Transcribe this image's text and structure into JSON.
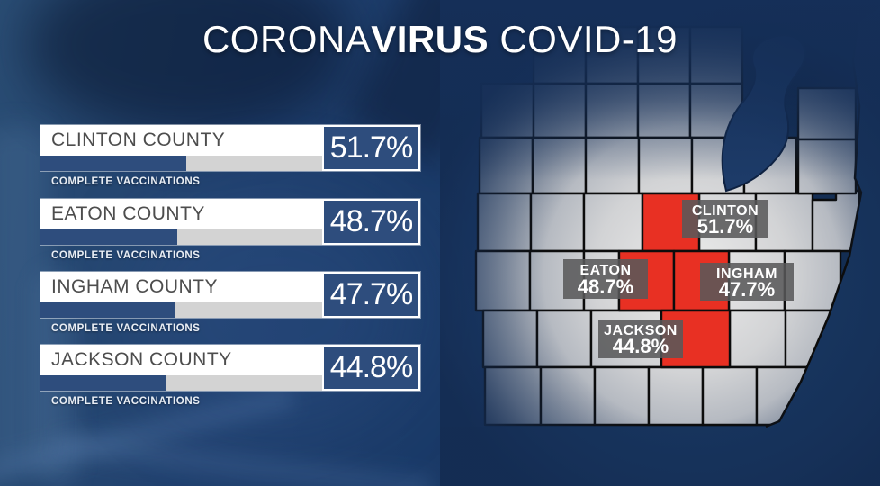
{
  "title": {
    "part1": "CORONA",
    "part2": "VIRUS",
    "part3": " COVID-19"
  },
  "panel": {
    "counties": [
      {
        "name": "CLINTON COUNTY",
        "value": 51.7,
        "value_label": "51.7%",
        "caption": "COMPLETE VACCINATIONS"
      },
      {
        "name": "EATON COUNTY",
        "value": 48.7,
        "value_label": "48.7%",
        "caption": "COMPLETE VACCINATIONS"
      },
      {
        "name": "INGHAM COUNTY",
        "value": 47.7,
        "value_label": "47.7%",
        "caption": "COMPLETE VACCINATIONS"
      },
      {
        "name": "JACKSON COUNTY",
        "value": 44.8,
        "value_label": "44.8%",
        "caption": "COMPLETE VACCINATIONS"
      }
    ]
  },
  "map": {
    "labels": [
      {
        "name": "CLINTON",
        "value": "51.7%"
      },
      {
        "name": "EATON",
        "value": "48.7%"
      },
      {
        "name": "INGHAM",
        "value": "47.7%"
      },
      {
        "name": "JACKSON",
        "value": "44.8%"
      }
    ]
  },
  "colors": {
    "background_navy": "#17345d",
    "bar_blue": "#2e4d7d",
    "track_gray": "#d3d3d3",
    "county_name_gray": "#4d4d4d",
    "highlight_red": "#e83023",
    "map_label_bg": "#58585a",
    "map_border": "#0c0c0c",
    "text_white": "#ffffff"
  },
  "chart_data": {
    "type": "bar",
    "title": "CORONAVIRUS COVID-19",
    "series_label": "Complete Vaccinations (%)",
    "categories": [
      "Clinton County",
      "Eaton County",
      "Ingham County",
      "Jackson County"
    ],
    "values": [
      51.7,
      48.7,
      47.7,
      44.8
    ],
    "xlim": [
      0,
      100
    ],
    "unit": "%",
    "legend_position": "none",
    "grid": false
  }
}
